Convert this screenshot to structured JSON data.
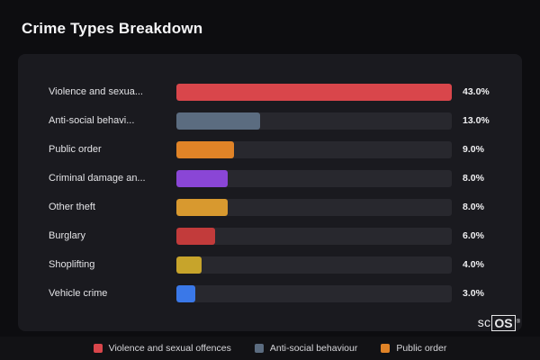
{
  "page": {
    "title": "Crime Types Breakdown"
  },
  "chart_data": {
    "type": "bar",
    "orientation": "horizontal",
    "title": "Crime Types Breakdown",
    "categories": [
      "Violence and sexua...",
      "Anti-social behavi...",
      "Public order",
      "Criminal damage an...",
      "Other theft",
      "Burglary",
      "Shoplifting",
      "Vehicle crime"
    ],
    "values": [
      43.0,
      13.0,
      9.0,
      8.0,
      8.0,
      6.0,
      4.0,
      3.0
    ],
    "value_labels": [
      "43.0%",
      "13.0%",
      "9.0%",
      "8.0%",
      "8.0%",
      "6.0%",
      "4.0%",
      "3.0%"
    ],
    "bar_colors": [
      "#d9464b",
      "#5b6c80",
      "#e08327",
      "#8a46d6",
      "#d8992f",
      "#c23b3b",
      "#c7a42b",
      "#3a78e8"
    ],
    "xlim": [
      0,
      43
    ],
    "xlabel": "",
    "ylabel": "",
    "grid": false,
    "legend_position": "bottom"
  },
  "legend": {
    "items": [
      {
        "label": "Violence and sexual offences",
        "color": "#d9464b"
      },
      {
        "label": "Anti-social behaviour",
        "color": "#5b6c80"
      },
      {
        "label": "Public order",
        "color": "#e08327"
      }
    ]
  },
  "branding": {
    "prefix": "sc",
    "boxed": "OS",
    "registered": "®"
  }
}
